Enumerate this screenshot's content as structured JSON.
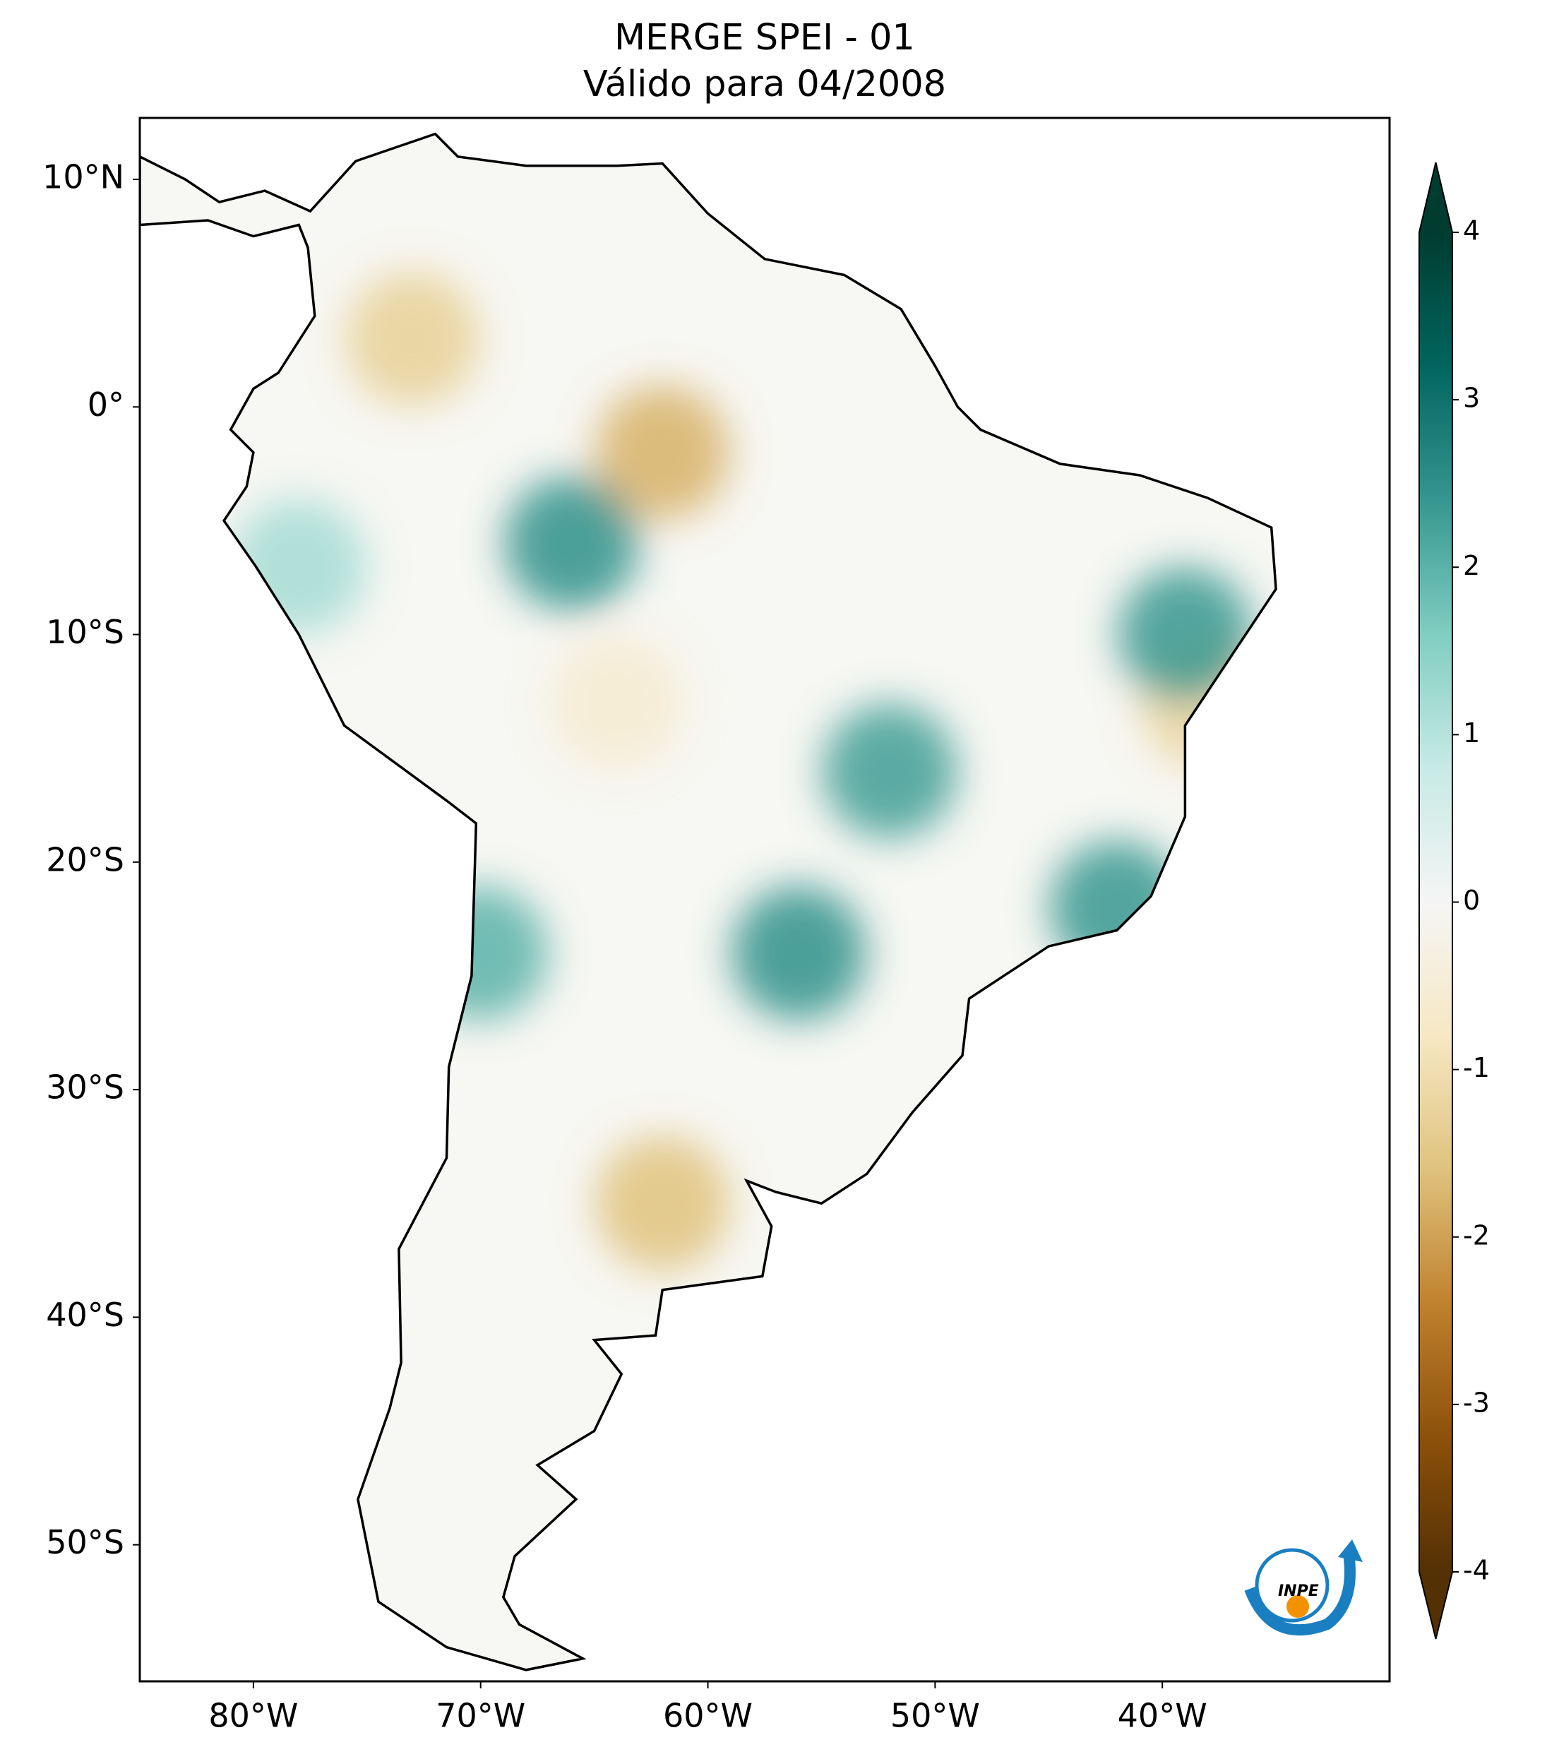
{
  "chart_data": {
    "type": "map",
    "title": "MERGE   SPEI - 01",
    "subtitle": "Válido para 04/2008",
    "xlim": [
      -85,
      -30
    ],
    "ylim": [
      -56,
      12.7
    ],
    "xticks": [
      {
        "value": -80,
        "label": "80°W"
      },
      {
        "value": -70,
        "label": "70°W"
      },
      {
        "value": -60,
        "label": "60°W"
      },
      {
        "value": -50,
        "label": "50°W"
      },
      {
        "value": -40,
        "label": "40°W"
      }
    ],
    "yticks": [
      {
        "value": 10,
        "label": "10°N"
      },
      {
        "value": 0,
        "label": "0°"
      },
      {
        "value": -10,
        "label": "10°S"
      },
      {
        "value": -20,
        "label": "20°S"
      },
      {
        "value": -30,
        "label": "30°S"
      },
      {
        "value": -40,
        "label": "40°S"
      },
      {
        "value": -50,
        "label": "50°S"
      }
    ],
    "colorbar": {
      "lim": [
        -4,
        4
      ],
      "ticks": [
        4,
        3,
        2,
        1,
        0,
        -1,
        -2,
        -3,
        -4
      ],
      "colormap": [
        "#543005",
        "#8c510a",
        "#bf812d",
        "#dfc27d",
        "#f6e8c3",
        "#f5f5f5",
        "#c7eae5",
        "#80cdc1",
        "#35978f",
        "#01665e",
        "#003c30"
      ]
    },
    "points": {
      "lon": [
        -62,
        -66,
        -52,
        -42,
        -38,
        -62,
        -39,
        -70,
        -73,
        -56,
        -64,
        -78
      ],
      "lat": [
        -2,
        -6,
        -16,
        -22,
        -13,
        -35,
        -10,
        -24,
        3,
        -24,
        -13,
        -7
      ],
      "values": [
        -1.8,
        2.5,
        2.3,
        2.4,
        -1.2,
        -1.6,
        2.4,
        2,
        -1.3,
        2.5,
        -0.6,
        1.2
      ]
    },
    "logo": "INPE"
  }
}
